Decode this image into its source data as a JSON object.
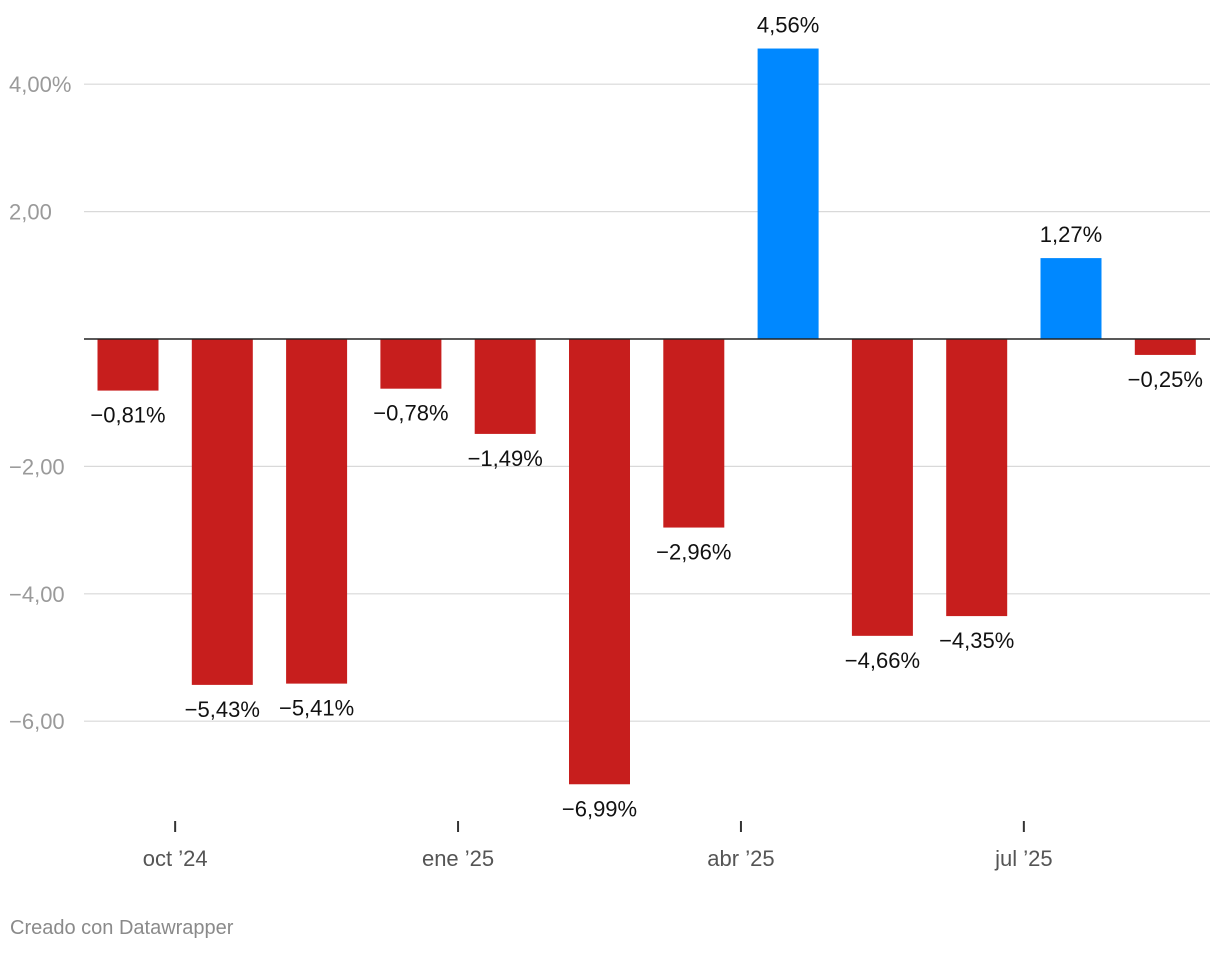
{
  "chart_data": {
    "type": "bar",
    "title": "",
    "xlabel": "",
    "ylabel": "",
    "ylim": [
      -7.6,
      5.2
    ],
    "y_ticks": [
      {
        "value": 4,
        "label": "4,00%"
      },
      {
        "value": 2,
        "label": "2,00"
      },
      {
        "value": -2,
        "label": "−2,00"
      },
      {
        "value": -4,
        "label": "−4,00"
      },
      {
        "value": -6,
        "label": "−6,00"
      }
    ],
    "x_ticks": [
      {
        "index": 1,
        "label": "oct ’24"
      },
      {
        "index": 4,
        "label": "ene ’25"
      },
      {
        "index": 7,
        "label": "abr ’25"
      },
      {
        "index": 10,
        "label": "jul ’25"
      }
    ],
    "values": [
      -0.81,
      -5.43,
      -5.41,
      -0.78,
      -1.49,
      -6.99,
      -2.96,
      4.56,
      -4.66,
      -4.35,
      1.27,
      -0.25
    ],
    "labels": [
      "−0,81%",
      "−5,43%",
      "−5,41%",
      "−0,78%",
      "−1,49%",
      "−6,99%",
      "−2,96%",
      "4,56%",
      "−4,66%",
      "−4,35%",
      "1,27%",
      "−0,25%"
    ],
    "colors": {
      "positive": "#0088ff",
      "negative": "#c71e1d"
    },
    "grid": true
  },
  "footer": {
    "credit": "Creado con Datawrapper"
  }
}
